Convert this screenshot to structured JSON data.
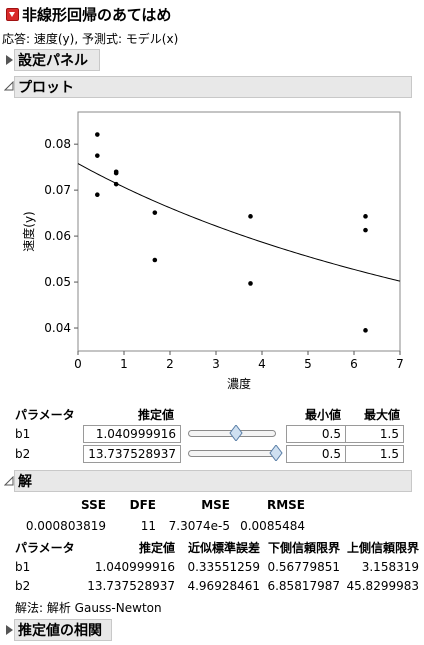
{
  "report": {
    "title": "非線形回帰のあてはめ",
    "response_line": "応答: 速度(y), 予測式: モデル(x)"
  },
  "sections": {
    "settings": "設定パネル",
    "plot": "プロット",
    "solution": "解",
    "correlation": "推定値の相関"
  },
  "chart_data": {
    "type": "scatter",
    "xlabel": "濃度",
    "ylabel": "速度(y)",
    "xlim": [
      0,
      7
    ],
    "ylim": [
      0.035,
      0.087
    ],
    "x_ticks": [
      "0",
      "1",
      "2",
      "3",
      "4",
      "5",
      "6",
      "7"
    ],
    "y_ticks": [
      "0.04",
      "0.05",
      "0.06",
      "0.07",
      "0.08"
    ],
    "points": [
      {
        "x": 0.42,
        "y": 0.0821
      },
      {
        "x": 0.42,
        "y": 0.0775
      },
      {
        "x": 0.42,
        "y": 0.069
      },
      {
        "x": 0.83,
        "y": 0.074
      },
      {
        "x": 0.83,
        "y": 0.0737
      },
      {
        "x": 0.83,
        "y": 0.0713
      },
      {
        "x": 1.67,
        "y": 0.0651
      },
      {
        "x": 1.67,
        "y": 0.0548
      },
      {
        "x": 3.75,
        "y": 0.0643
      },
      {
        "x": 3.75,
        "y": 0.0497
      },
      {
        "x": 6.25,
        "y": 0.0643
      },
      {
        "x": 6.25,
        "y": 0.0613
      },
      {
        "x": 6.25,
        "y": 0.0395
      }
    ],
    "fit": {
      "b1": 1.040999916,
      "b2": 13.737528937
    }
  },
  "params": {
    "headers": {
      "name": "パラメータ",
      "estimate": "推定値",
      "min": "最小値",
      "max": "最大値"
    },
    "rows": [
      {
        "name": "b1",
        "estimate": "1.040999916",
        "min": "0.5",
        "max": "1.5",
        "slider_fraction": 0.54
      },
      {
        "name": "b2",
        "estimate": "13.737528937",
        "min": "0.5",
        "max": "1.5",
        "slider_fraction": 1.0
      }
    ]
  },
  "solution": {
    "summary_headers": {
      "sse": "SSE",
      "dfe": "DFE",
      "mse": "MSE",
      "rmse": "RMSE"
    },
    "summary_values": {
      "sse": "0.000803819",
      "dfe": "11",
      "mse": "7.3074e-5",
      "rmse": "0.0085484"
    },
    "est_headers": {
      "name": "パラメータ",
      "estimate": "推定値",
      "se": "近似標準誤差",
      "lower": "下側信頼限界",
      "upper": "上側信頼限界"
    },
    "rows": [
      {
        "name": "b1",
        "estimate": "1.040999916",
        "se": "0.33551259",
        "lower": "0.56779851",
        "upper": "3.158319"
      },
      {
        "name": "b2",
        "estimate": "13.737528937",
        "se": "4.96928461",
        "lower": "6.85817987",
        "upper": "45.8299983"
      }
    ],
    "method": "解法: 解析 Gauss-Newton"
  }
}
